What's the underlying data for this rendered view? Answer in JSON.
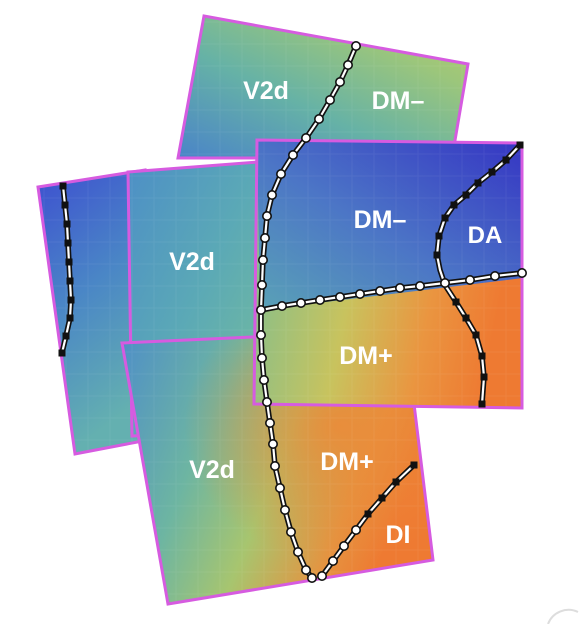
{
  "figure": {
    "panels": [
      {
        "id": "left-strip",
        "labels": []
      },
      {
        "id": "middle-left",
        "labels": [
          "V2d"
        ]
      },
      {
        "id": "bottom-left",
        "labels": [
          "V2d",
          "DM+",
          "DI"
        ]
      },
      {
        "id": "top",
        "labels": [
          "V2d",
          "DM–"
        ]
      },
      {
        "id": "right",
        "labels": [
          "DM–",
          "DA",
          "DM+"
        ]
      }
    ],
    "colors": {
      "border": "#d65be0",
      "map_low": "#3b3fc9",
      "map_mid": "#6fb7a0",
      "map_high": "#f07a2e",
      "boundary_line": "#111111",
      "boundary_core": "#ffffff"
    }
  }
}
